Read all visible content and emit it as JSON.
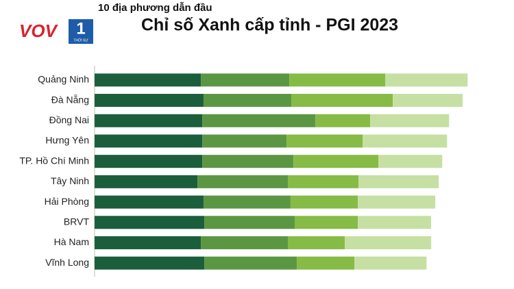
{
  "logo": {
    "text": "VOV",
    "mark": "1",
    "sub": "THỜI SỰ"
  },
  "chart_data": {
    "type": "stacked-barh",
    "subtitle": "10 địa phương dẫn đầu",
    "title": "Chỉ số Xanh cấp tỉnh - PGI 2023",
    "categories": [
      "Quảng Ninh",
      "Đà Nẵng",
      "Đồng Nai",
      "Hưng Yên",
      "TP. Hồ Chí Minh",
      "Tây Ninh",
      "Hải Phòng",
      "BRVT",
      "Hà Nam",
      "Vĩnh Long"
    ],
    "xlim": [
      0,
      24
    ],
    "series": [
      {
        "color": "#1b5e3b",
        "values": [
          6.83,
          7.0,
          6.92,
          6.92,
          6.92,
          6.61,
          7.0,
          7.05,
          6.83,
          7.05
        ]
      },
      {
        "color": "#5b9743",
        "values": [
          5.68,
          5.64,
          7.27,
          5.42,
          5.86,
          5.81,
          5.59,
          5.81,
          5.59,
          5.95
        ]
      },
      {
        "color": "#86bb46",
        "values": [
          6.17,
          6.52,
          3.52,
          4.89,
          5.46,
          4.54,
          4.32,
          4.05,
          3.66,
          3.7
        ]
      },
      {
        "color": "#c5e0a2",
        "values": [
          5.29,
          4.49,
          5.07,
          5.42,
          4.1,
          5.15,
          4.98,
          4.71,
          5.55,
          4.63
        ]
      }
    ]
  }
}
